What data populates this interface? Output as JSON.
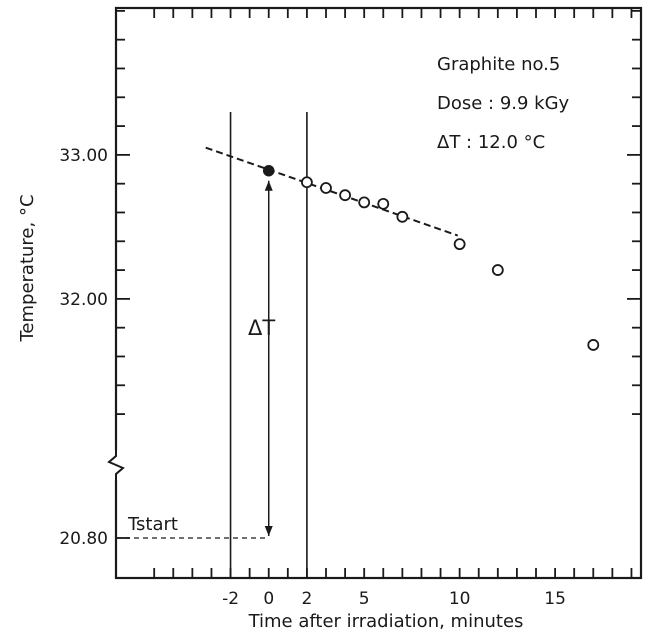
{
  "chart_data": {
    "type": "scatter",
    "title": "",
    "xlabel": "Time after irradiation, minutes",
    "ylabel": "Temperature, °C",
    "xlim": [
      -8,
      19.5
    ],
    "ylim_upper_segment": [
      31.02,
      34.02
    ],
    "ylim_lower_segment": [
      20.8,
      20.8
    ],
    "axis_break": "y-axis break between 31.0 and 20.80",
    "x_ticks": [
      -2,
      0,
      2,
      5,
      10,
      15
    ],
    "y_ticks": [
      33.0,
      32.0,
      20.8
    ],
    "y_tick_labels": [
      "33.00",
      "32.00",
      "20.80"
    ],
    "series": [
      {
        "name": "",
        "marker": "open-circle",
        "x": [
          2,
          3,
          4,
          5,
          6,
          7,
          10,
          12,
          17
        ],
        "y": [
          32.81,
          32.77,
          32.72,
          32.67,
          32.66,
          32.57,
          32.38,
          32.2,
          31.68
        ]
      }
    ],
    "extrapolated_point": {
      "x": 0,
      "y": 32.89,
      "marker": "filled-circle"
    },
    "fit_line": {
      "style": "dashed",
      "x": [
        -3.3,
        9.9
      ],
      "y": [
        33.05,
        32.44
      ]
    },
    "vertical_lines_x": [
      -2,
      2
    ],
    "t_start": {
      "label": "Tstart",
      "y": 20.8
    },
    "delta_t_label": "ΔT",
    "info_box": {
      "sample": "Graphite no.5",
      "dose": "Dose : 9.9 kGy",
      "delta_t": "ΔT : 12.0 °C"
    },
    "grid": false,
    "legend": "none"
  }
}
